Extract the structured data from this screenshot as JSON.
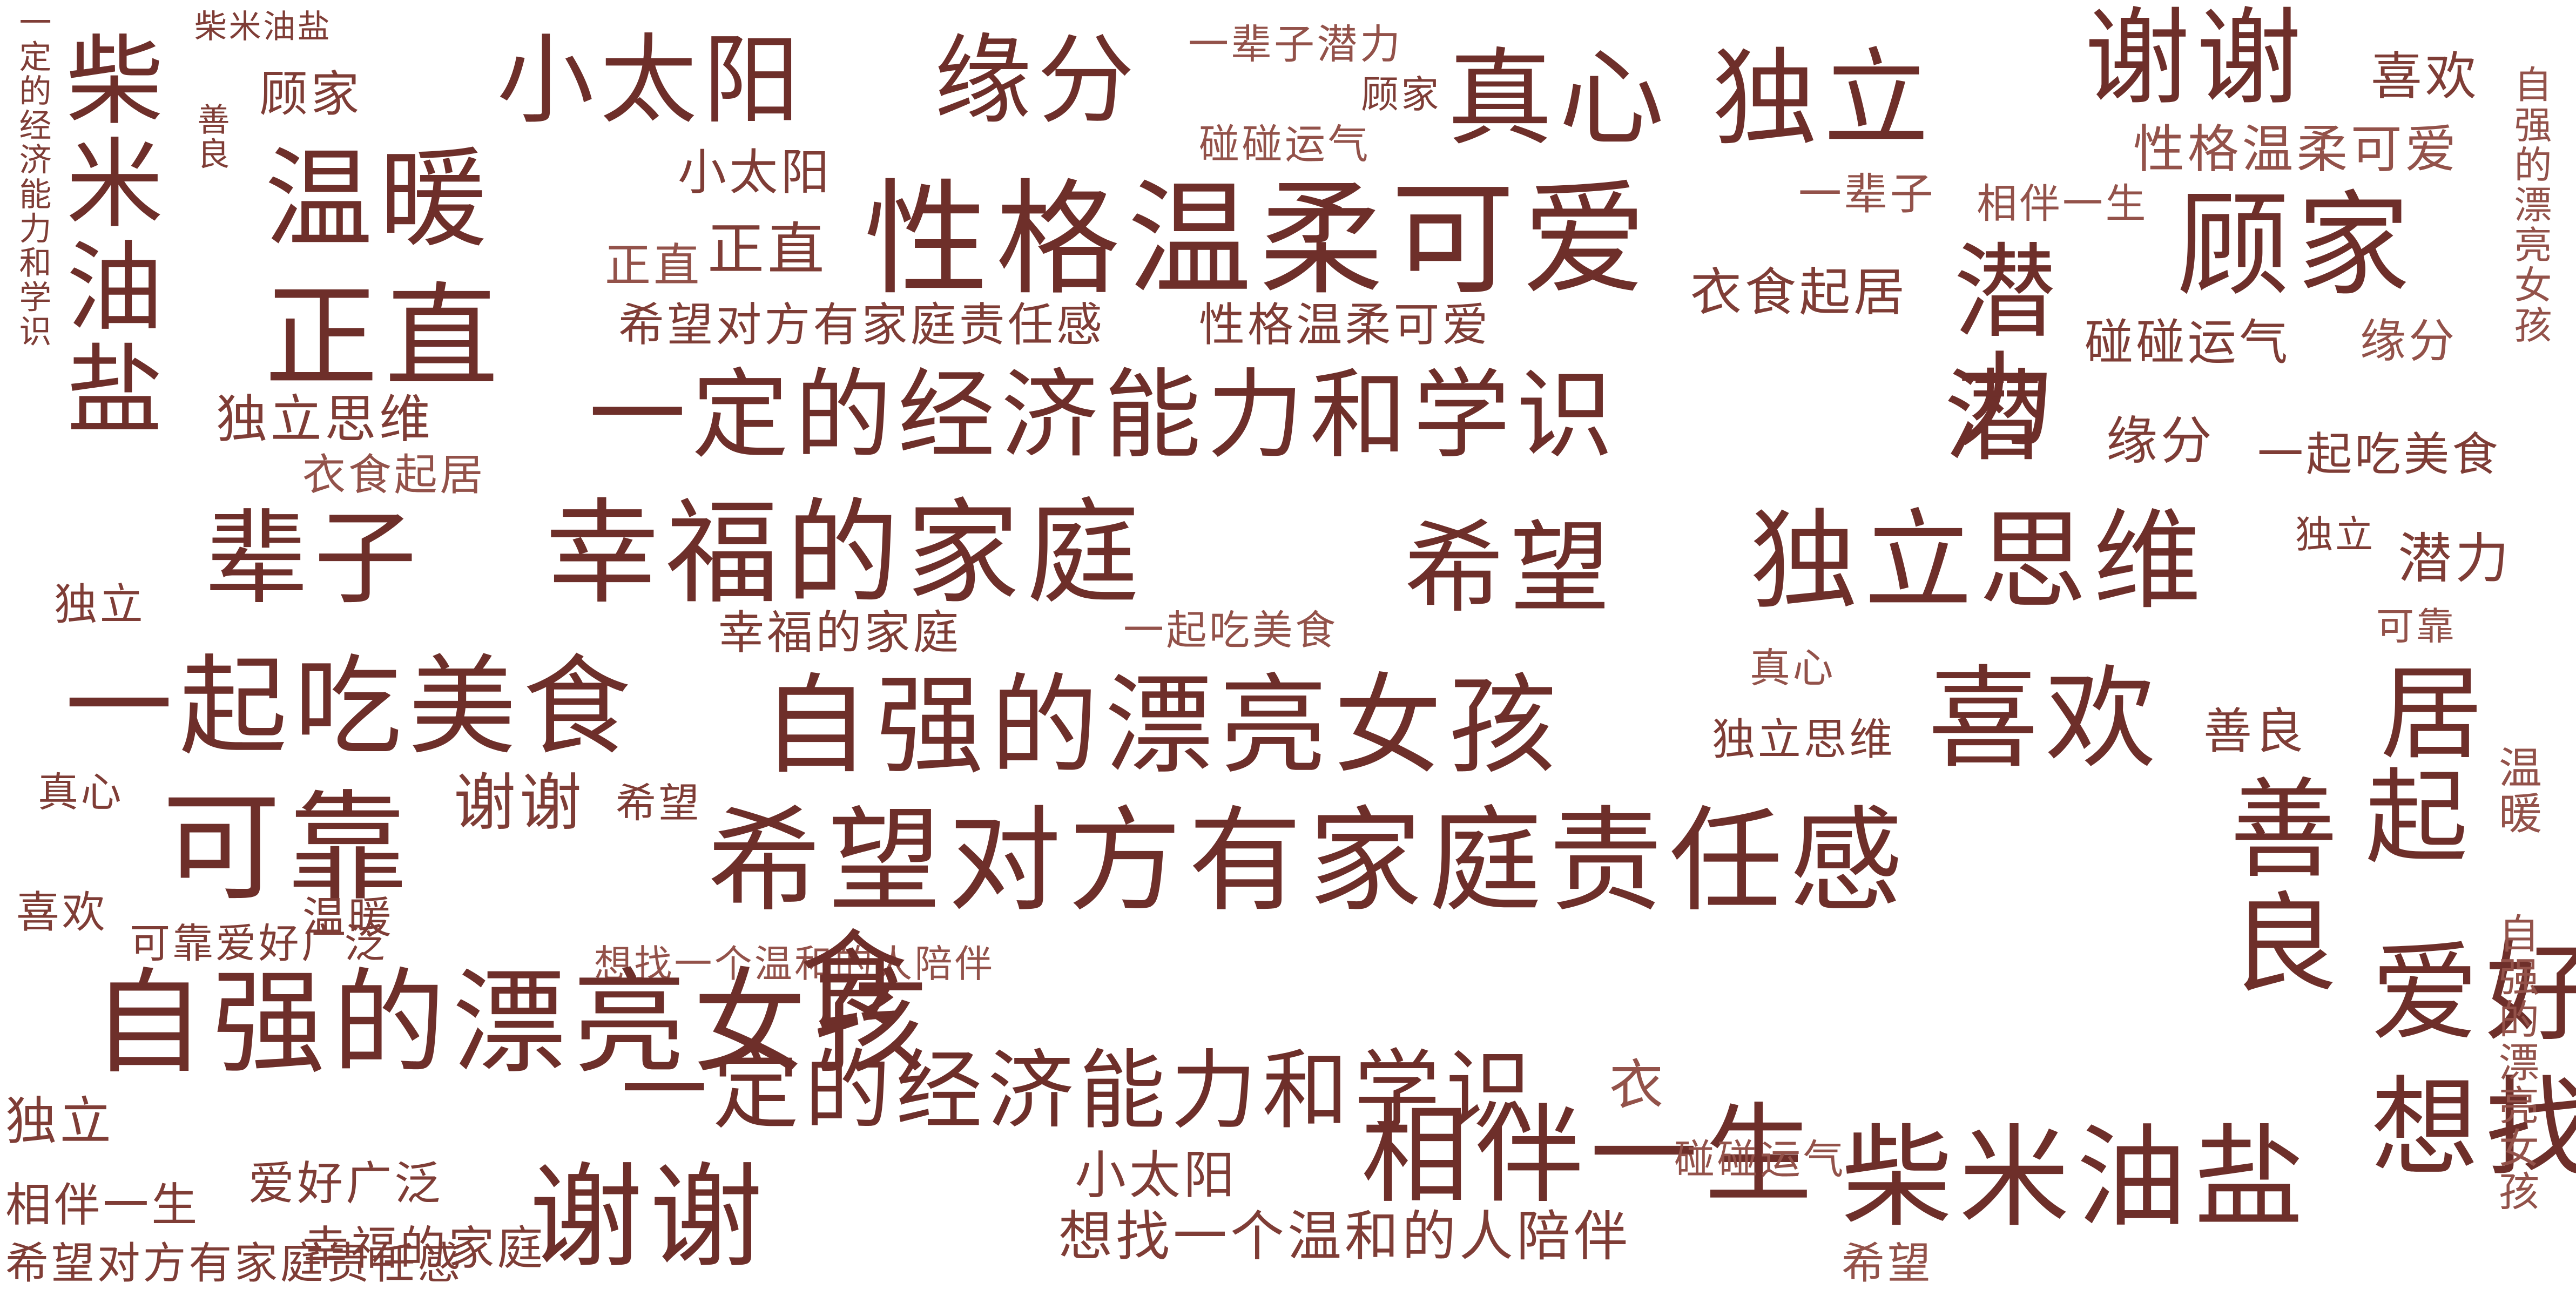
{
  "colors": {
    "background": "#ffffff",
    "text_dark": "#6e2f2a",
    "text_mid": "#7f3d36",
    "text_light": "#93524a"
  },
  "words": [
    {
      "text": "柴米油盐"
    },
    {
      "text": "一定的经济能力和学识"
    },
    {
      "text": "柴米油盐"
    },
    {
      "text": "顾家"
    },
    {
      "text": "善良"
    },
    {
      "text": "小太阳"
    },
    {
      "text": "缘分"
    },
    {
      "text": "一辈子潜力"
    },
    {
      "text": "顾家"
    },
    {
      "text": "真心"
    },
    {
      "text": "独立"
    },
    {
      "text": "谢谢"
    },
    {
      "text": "喜欢"
    },
    {
      "text": "自强的漂亮女孩"
    },
    {
      "text": "碰碰运气"
    },
    {
      "text": "性格温柔可爱"
    },
    {
      "text": "温暖"
    },
    {
      "text": "小太阳"
    },
    {
      "text": "一辈子"
    },
    {
      "text": "相伴一生"
    },
    {
      "text": "顾家"
    },
    {
      "text": "正直"
    },
    {
      "text": "正直"
    },
    {
      "text": "性格温柔可爱"
    },
    {
      "text": "衣食起居"
    },
    {
      "text": "潜力"
    },
    {
      "text": "正直"
    },
    {
      "text": "希望对方有家庭责任感"
    },
    {
      "text": "性格温柔可爱"
    },
    {
      "text": "碰碰运气"
    },
    {
      "text": "缘分"
    },
    {
      "text": "独立思维"
    },
    {
      "text": "一定的经济能力和学识"
    },
    {
      "text": "潜"
    },
    {
      "text": "衣食起居"
    },
    {
      "text": "缘分"
    },
    {
      "text": "一起吃美食"
    },
    {
      "text": "独立"
    },
    {
      "text": "辈子"
    },
    {
      "text": "幸福的家庭"
    },
    {
      "text": "希望"
    },
    {
      "text": "独立思维"
    },
    {
      "text": "独立"
    },
    {
      "text": "潜力"
    },
    {
      "text": "可靠"
    },
    {
      "text": "幸福的家庭"
    },
    {
      "text": "一起吃美食"
    },
    {
      "text": "真心"
    },
    {
      "text": "一起吃美食"
    },
    {
      "text": "自强的漂亮女孩"
    },
    {
      "text": "喜欢"
    },
    {
      "text": "独立思维"
    },
    {
      "text": "善良"
    },
    {
      "text": "居"
    },
    {
      "text": "真心"
    },
    {
      "text": "谢谢"
    },
    {
      "text": "希望"
    },
    {
      "text": "可靠"
    },
    {
      "text": "希望对方有家庭责任感"
    },
    {
      "text": "善良"
    },
    {
      "text": "起"
    },
    {
      "text": "温暖"
    },
    {
      "text": "喜欢"
    },
    {
      "text": "可靠爱好广泛"
    },
    {
      "text": "温暖"
    },
    {
      "text": "想找一个温和的人陪伴"
    },
    {
      "text": "食"
    },
    {
      "text": "爱好广泛"
    },
    {
      "text": "自强的漂亮女孩"
    },
    {
      "text": "一定的经济能力和学识"
    },
    {
      "text": "衣"
    },
    {
      "text": "想找一个温和的人陪伴"
    },
    {
      "text": "自强的漂亮女孩"
    },
    {
      "text": "独立"
    },
    {
      "text": "相伴一生"
    },
    {
      "text": "小太阳"
    },
    {
      "text": "碰碰运气"
    },
    {
      "text": "柴米油盐"
    },
    {
      "text": "爱好广泛"
    },
    {
      "text": "相伴一生"
    },
    {
      "text": "谢谢"
    },
    {
      "text": "幸福的家庭"
    },
    {
      "text": "希望对方有家庭责任感"
    },
    {
      "text": "想找一个温和的人陪伴"
    },
    {
      "text": "希望"
    }
  ]
}
